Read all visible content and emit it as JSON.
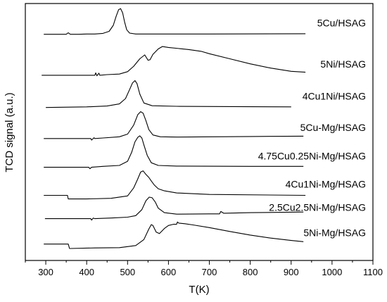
{
  "chart_data": {
    "type": "line",
    "title": "",
    "xlabel": "T(K)",
    "ylabel": "TCD signal (a.u.)",
    "xlim": [
      250,
      1100
    ],
    "xticks": [
      300,
      400,
      500,
      600,
      700,
      800,
      900,
      1000,
      1100
    ],
    "xminor_step": 50,
    "ylim": [
      0,
      8.6
    ],
    "y_ticks_shown": false,
    "grid": false,
    "legend": "none",
    "series_labels_inline": true,
    "color": "#000000",
    "series": [
      {
        "name": "5Cu/HSAG",
        "baseline": 7.57,
        "x": [
          295,
          350,
          355,
          360,
          380,
          400,
          420,
          440,
          455,
          465,
          472,
          478,
          483,
          488,
          493,
          498,
          505,
          520,
          560,
          700,
          935
        ],
        "rel": [
          0,
          0,
          0.05,
          0,
          0,
          0.01,
          0.01,
          0.03,
          0.1,
          0.3,
          0.6,
          0.82,
          0.86,
          0.72,
          0.4,
          0.15,
          0.04,
          0.01,
          0.01,
          0.01,
          0.02
        ]
      },
      {
        "name": "5Ni/HSAG",
        "baseline": 6.2,
        "x": [
          290,
          380,
          420,
          422,
          425,
          430,
          432,
          450,
          480,
          500,
          515,
          530,
          542,
          550,
          555,
          562,
          575,
          585,
          600,
          650,
          680,
          700,
          750,
          800,
          850,
          900,
          935
        ],
        "rel": [
          0,
          0,
          0,
          0.08,
          -0.02,
          0.07,
          0,
          0.02,
          0.04,
          0.12,
          0.3,
          0.55,
          0.68,
          0.5,
          0.52,
          0.7,
          0.88,
          0.96,
          0.93,
          0.86,
          0.8,
          0.72,
          0.55,
          0.38,
          0.24,
          0.13,
          0.1
        ]
      },
      {
        "name": "4Cu1Ni/HSAG",
        "baseline": 5.12,
        "x": [
          300,
          400,
          450,
          480,
          495,
          505,
          512,
          518,
          523,
          530,
          540,
          560,
          620,
          900
        ],
        "rel": [
          0,
          0.02,
          0.05,
          0.12,
          0.3,
          0.6,
          0.82,
          0.9,
          0.8,
          0.45,
          0.15,
          0.06,
          0.04,
          0.02
        ]
      },
      {
        "name": "5Cu-Mg/HSAG",
        "baseline": 4.08,
        "x": [
          295,
          410,
          412,
          418,
          420,
          440,
          480,
          500,
          515,
          525,
          532,
          538,
          545,
          552,
          562,
          580,
          620,
          800,
          930
        ],
        "rel": [
          0,
          0,
          -0.05,
          0.03,
          0,
          0.02,
          0.06,
          0.15,
          0.45,
          0.8,
          0.9,
          0.85,
          0.6,
          0.3,
          0.12,
          0.06,
          0.05,
          0.07,
          0.08
        ]
      },
      {
        "name": "4.75Cu0.25Ni-Mg/HSAG",
        "baseline": 3.12,
        "x": [
          295,
          405,
          408,
          412,
          440,
          480,
          500,
          510,
          518,
          525,
          530,
          535,
          540,
          548,
          558,
          575,
          620,
          800,
          930
        ],
        "rel": [
          0,
          0,
          -0.05,
          0,
          0.03,
          0.06,
          0.2,
          0.5,
          0.85,
          1.0,
          1.05,
          0.98,
          0.75,
          0.4,
          0.15,
          0.06,
          0.04,
          0.03,
          0.03
        ]
      },
      {
        "name": "4Cu1Ni-Mg/HSAG",
        "baseline": 2.18,
        "x": [
          295,
          353,
          355,
          357,
          400,
          460,
          500,
          515,
          525,
          532,
          538,
          545,
          552,
          558,
          565,
          575,
          590,
          620,
          700,
          935
        ],
        "rel": [
          0,
          0,
          -0.12,
          -0.12,
          -0.12,
          -0.1,
          -0.02,
          0.25,
          0.55,
          0.78,
          0.82,
          0.7,
          0.6,
          0.48,
          0.35,
          0.22,
          0.15,
          0.08,
          0.03,
          0.0
        ]
      },
      {
        "name": "2.5Cu2.5Ni-Mg/HSAG",
        "baseline": 1.4,
        "x": [
          298,
          410,
          412,
          416,
          420,
          460,
          500,
          520,
          535,
          545,
          553,
          560,
          568,
          575,
          590,
          620,
          700,
          725,
          728,
          735,
          800,
          930
        ],
        "rel": [
          0,
          0,
          -0.05,
          0.02,
          0,
          0.02,
          0.05,
          0.1,
          0.3,
          0.6,
          0.72,
          0.7,
          0.55,
          0.35,
          0.2,
          0.15,
          0.16,
          0.16,
          0.24,
          0.18,
          0.2,
          0.22
        ]
      },
      {
        "name": "5Ni-Mg/HSAG",
        "baseline": 0.55,
        "x": [
          295,
          355,
          358,
          360,
          420,
          480,
          520,
          540,
          552,
          558,
          562,
          570,
          578,
          590,
          600,
          612,
          620,
          622,
          625,
          640,
          660,
          700,
          750,
          800,
          850,
          900,
          930
        ],
        "rel": [
          0,
          0,
          -0.15,
          -0.15,
          -0.13,
          -0.12,
          -0.05,
          0.15,
          0.5,
          0.65,
          0.62,
          0.4,
          0.35,
          0.52,
          0.62,
          0.66,
          0.66,
          0.74,
          0.7,
          0.68,
          0.64,
          0.55,
          0.42,
          0.3,
          0.2,
          0.12,
          0.08
        ]
      }
    ]
  }
}
